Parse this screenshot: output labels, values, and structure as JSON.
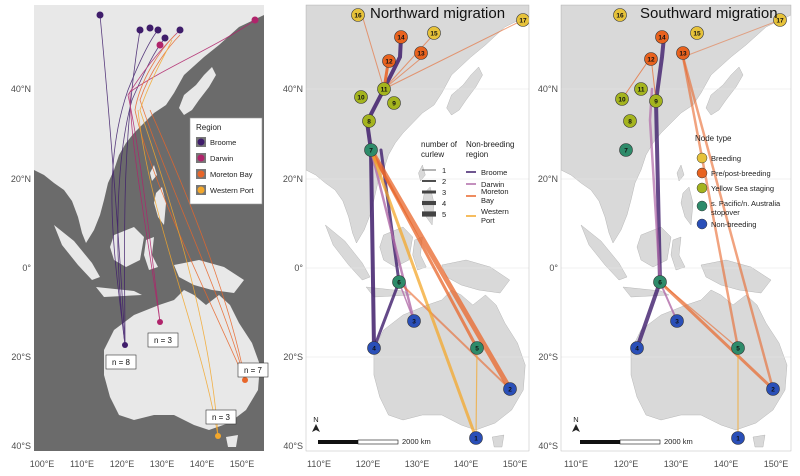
{
  "panels": {
    "left": {
      "x_ticks": [
        "100°E",
        "110°E",
        "120°E",
        "130°E",
        "140°E",
        "150°E"
      ],
      "y_ticks": [
        "40°N",
        "20°N",
        "0°",
        "20°S",
        "40°S"
      ],
      "legend": {
        "title": "Region",
        "items": [
          {
            "label": "Broome",
            "color": "#3f1d6b"
          },
          {
            "label": "Darwin",
            "color": "#b0246b"
          },
          {
            "label": "Moreton Bay",
            "color": "#e8662a"
          },
          {
            "label": "Western Port",
            "color": "#f3a72b"
          }
        ]
      },
      "count_labels": [
        "n = 8",
        "n = 3",
        "n = 7",
        "n = 3"
      ]
    },
    "north": {
      "title": "Northward migration",
      "x_ticks": [
        "110°E",
        "120°E",
        "130°E",
        "140°E",
        "150°E"
      ],
      "y_ticks": [
        "40°N",
        "20°N",
        "0°",
        "20°S",
        "40°S"
      ],
      "legend_count": {
        "title_line1": "number of",
        "title_line2": "curlew",
        "items": [
          "1",
          "2",
          "3",
          "4",
          "5"
        ]
      },
      "legend_region": {
        "title_line1": "Non-breeding",
        "title_line2": "region",
        "items": [
          {
            "label": "Broome",
            "color": "#3f1d6b"
          },
          {
            "label": "Darwin",
            "color": "#b06aa8"
          },
          {
            "label_line1": "Moreton",
            "label_line2": "Bay",
            "color": "#e8662a"
          },
          {
            "label_line1": "Western",
            "label_line2": "Port",
            "color": "#f3a72b"
          }
        ]
      },
      "scale_label": "2000 km",
      "north_arrow": "N"
    },
    "south": {
      "title": "Southward migration",
      "x_ticks": [
        "110°E",
        "120°E",
        "130°E",
        "140°E",
        "150°E"
      ],
      "y_ticks": [
        "40°N",
        "20°N",
        "0°",
        "20°S",
        "40°S"
      ],
      "legend": {
        "title": "Node type",
        "items": [
          {
            "label": "Breeding",
            "color": "#e6c23a"
          },
          {
            "label": "Pre/post-breeding",
            "color": "#e8621e"
          },
          {
            "label": "Yellow Sea staging",
            "color": "#a4b41e"
          },
          {
            "label_line1": "s. Pacific/n. Australia",
            "label_line2": "stopover",
            "color": "#2e8b6a"
          },
          {
            "label": "Non-breeding",
            "color": "#2a4fb8"
          }
        ]
      },
      "scale_label": "2000 km",
      "north_arrow": "N"
    }
  },
  "nodes": [
    "1",
    "2",
    "3",
    "4",
    "5",
    "6",
    "7",
    "8",
    "9",
    "10",
    "11",
    "12",
    "13",
    "14",
    "15",
    "16",
    "17"
  ]
}
